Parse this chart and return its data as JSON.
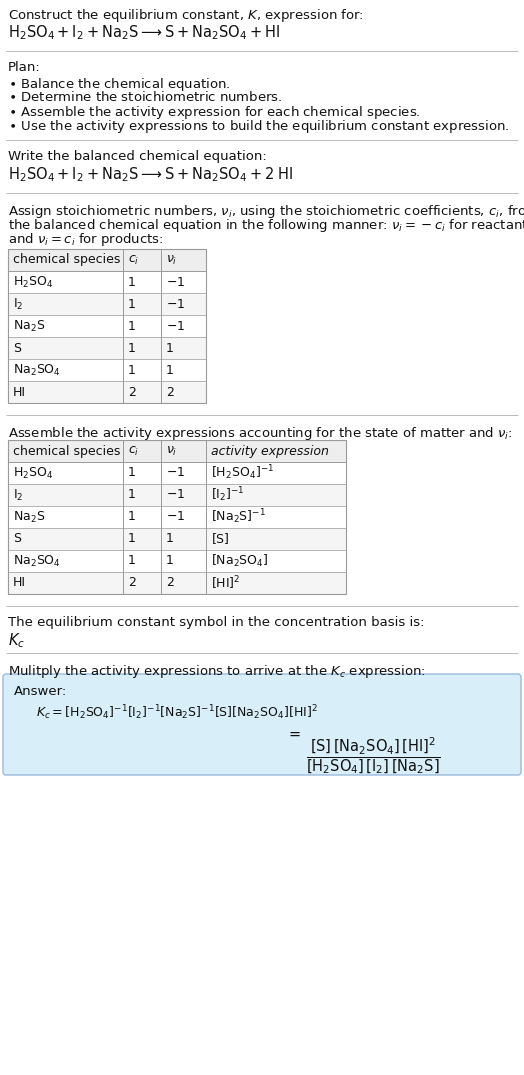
{
  "bg_color": "#ffffff",
  "table_header_bg": "#eeeeee",
  "table_row_bg1": "#ffffff",
  "table_row_bg2": "#f5f5f5",
  "table_border_color": "#999999",
  "answer_box_bg": "#d8eef8",
  "answer_box_border": "#99bbdd",
  "separator_color": "#bbbbbb",
  "text_color": "#111111",
  "font_size": 9.5,
  "table_font_size": 9.0,
  "table1_rows": [
    [
      "$\\mathrm{H_2SO_4}$",
      "1",
      "$-1$"
    ],
    [
      "$\\mathrm{I_2}$",
      "1",
      "$-1$"
    ],
    [
      "$\\mathrm{Na_2S}$",
      "1",
      "$-1$"
    ],
    [
      "S",
      "1",
      "1"
    ],
    [
      "$\\mathrm{Na_2SO_4}$",
      "1",
      "1"
    ],
    [
      "HI",
      "2",
      "2"
    ]
  ],
  "table2_rows": [
    [
      "$\\mathrm{H_2SO_4}$",
      "1",
      "$-1$",
      "$[\\mathrm{H_2SO_4}]^{-1}$"
    ],
    [
      "$\\mathrm{I_2}$",
      "1",
      "$-1$",
      "$[\\mathrm{I_2}]^{-1}$"
    ],
    [
      "$\\mathrm{Na_2S}$",
      "1",
      "$-1$",
      "$[\\mathrm{Na_2S}]^{-1}$"
    ],
    [
      "S",
      "1",
      "1",
      "$[\\mathrm{S}]$"
    ],
    [
      "$\\mathrm{Na_2SO_4}$",
      "1",
      "1",
      "$[\\mathrm{Na_2SO_4}]$"
    ],
    [
      "HI",
      "2",
      "2",
      "$[\\mathrm{HI}]^2$"
    ]
  ]
}
